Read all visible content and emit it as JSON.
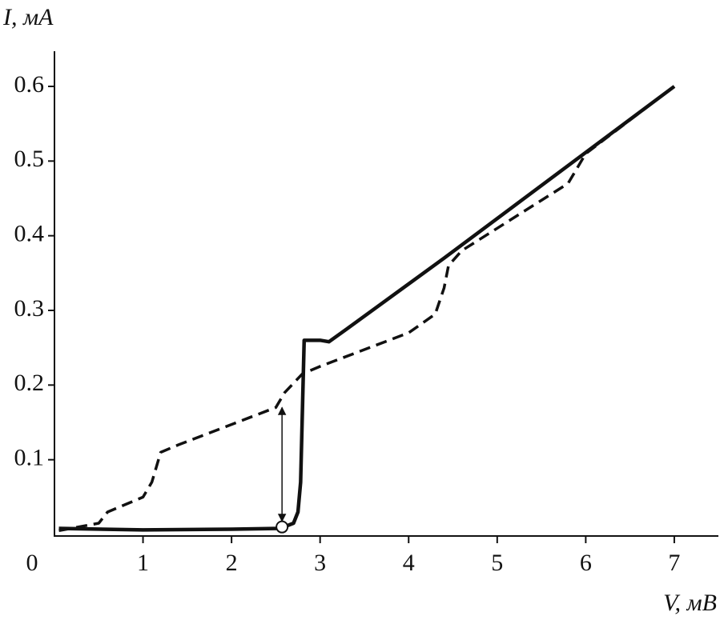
{
  "chart_data": {
    "type": "line",
    "ylabel": "I, мА",
    "xlabel": "V, мВ",
    "xlim": [
      0,
      7.48
    ],
    "ylim": [
      0,
      0.645
    ],
    "xticks": [
      0,
      1,
      2,
      3,
      4,
      5,
      6,
      7
    ],
    "yticks": [
      0.1,
      0.2,
      0.3,
      0.4,
      0.5,
      0.6
    ],
    "grid": false,
    "series": [
      {
        "color": "#111111",
        "style": "solid",
        "x": [
          0.05,
          1,
          2,
          2.55,
          2.7,
          2.75,
          2.78,
          2.82,
          3.0,
          3.1,
          3.3,
          4.4,
          7
        ],
        "values": [
          0.008,
          0.006,
          0.007,
          0.008,
          0.015,
          0.03,
          0.07,
          0.26,
          0.26,
          0.258,
          0.275,
          0.37,
          0.6
        ]
      },
      {
        "color": "#111111",
        "style": "dashed",
        "x": [
          0.05,
          0.5,
          0.6,
          1,
          1.1,
          1.2,
          1.4,
          2.5,
          2.6,
          2.8,
          3,
          4,
          4.3,
          4.4,
          4.45,
          4.6,
          5.8,
          5.9,
          6,
          7
        ],
        "values": [
          0.005,
          0.015,
          0.03,
          0.05,
          0.07,
          0.11,
          0.12,
          0.17,
          0.19,
          0.215,
          0.225,
          0.27,
          0.295,
          0.33,
          0.36,
          0.38,
          0.47,
          0.49,
          0.51,
          0.6
        ]
      }
    ],
    "arrow": {
      "x": 2.57,
      "from": 0.01,
      "to": 0.17
    },
    "marker": {
      "x": 2.57,
      "y": 0.01
    }
  }
}
